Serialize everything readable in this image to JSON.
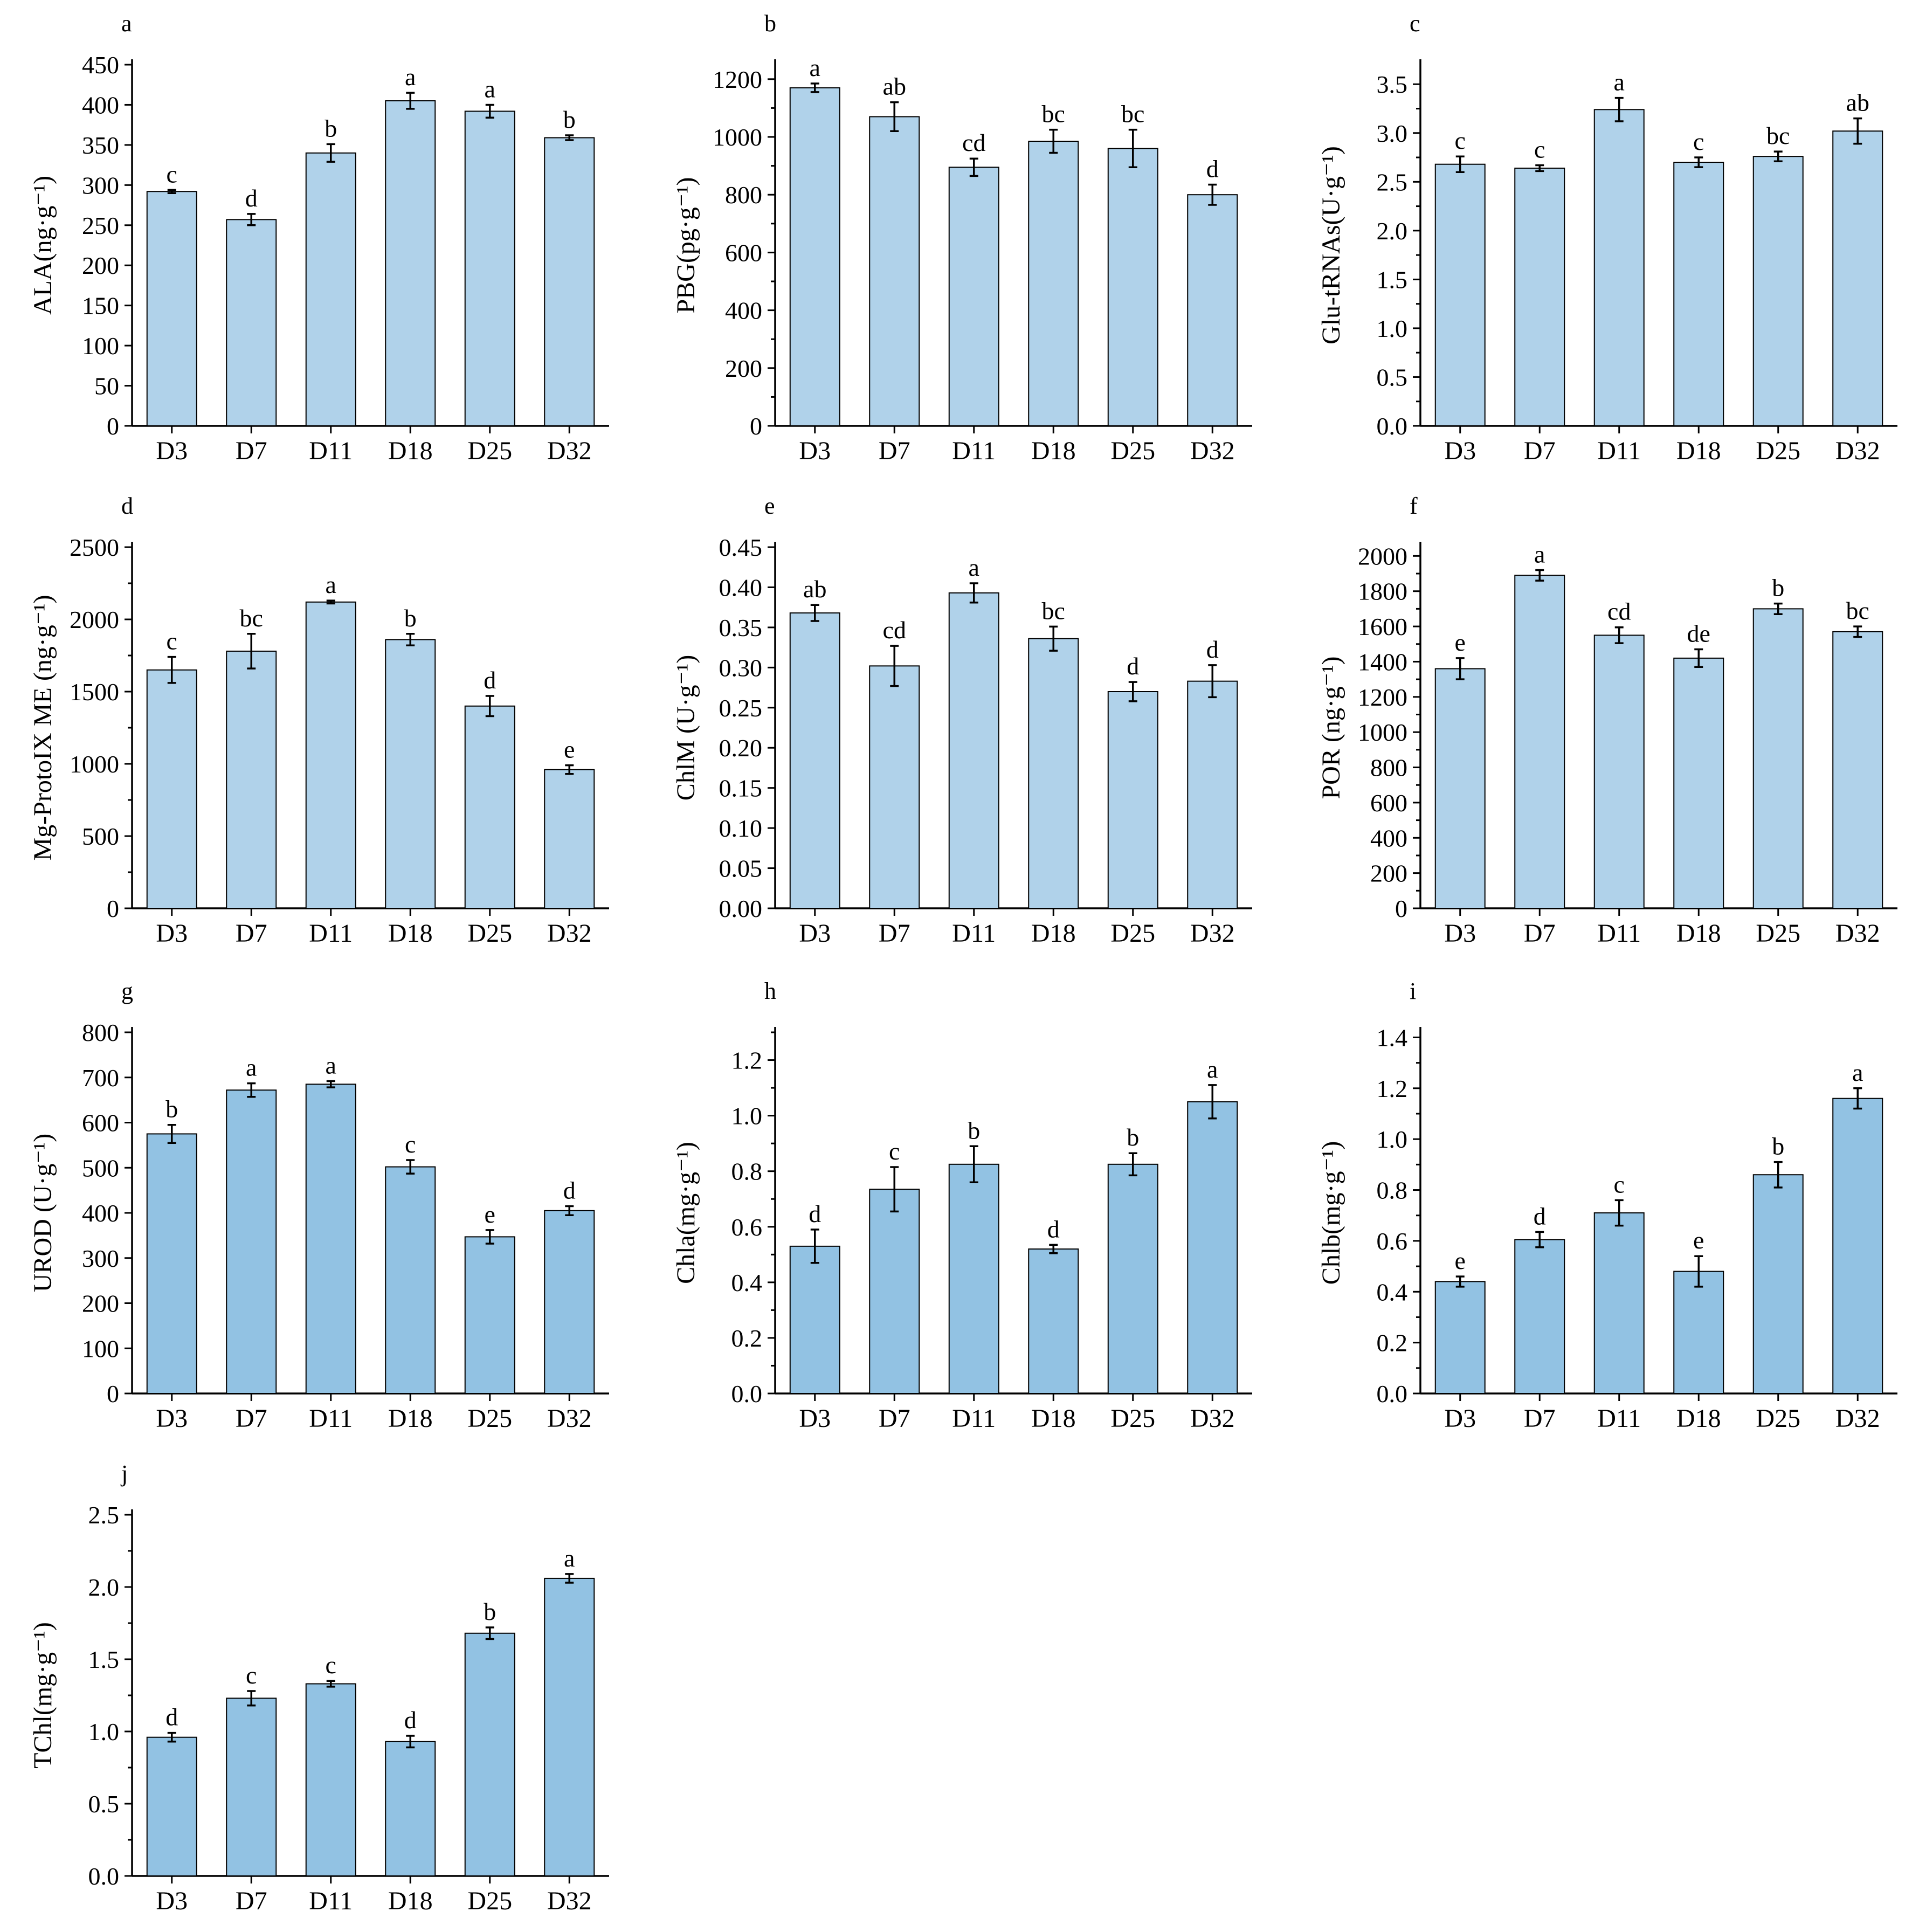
{
  "figure": {
    "colors": {
      "bar_light": "#b0d2ea",
      "bar_dark": "#92c2e3",
      "ink": "#000000"
    }
  },
  "chart_data": [
    {
      "panel": "a",
      "type": "bar",
      "ylabel": "ALA(ng·g⁻¹)",
      "ylim": [
        0,
        450
      ],
      "yticks": [
        0,
        50,
        100,
        150,
        200,
        250,
        300,
        350,
        400,
        450
      ],
      "tick_decimals": 0,
      "minor_ticks": false,
      "color": "#b0d2ea",
      "categories": [
        "D3",
        "D7",
        "D11",
        "D18",
        "D25",
        "D32"
      ],
      "values": [
        292,
        257,
        340,
        405,
        392,
        359
      ],
      "errors": [
        2,
        7,
        11,
        10,
        8,
        3
      ],
      "letters": [
        "c",
        "d",
        "b",
        "a",
        "a",
        "b"
      ]
    },
    {
      "panel": "b",
      "type": "bar",
      "ylabel": "PBG(pg·g⁻¹)",
      "ylim": [
        0,
        1250
      ],
      "yticks": [
        0,
        200,
        400,
        600,
        800,
        1000,
        1200
      ],
      "tick_decimals": 0,
      "minor_ticks": true,
      "color": "#b0d2ea",
      "categories": [
        "D3",
        "D7",
        "D11",
        "D18",
        "D25",
        "D32"
      ],
      "values": [
        1170,
        1070,
        895,
        985,
        960,
        800
      ],
      "errors": [
        15,
        50,
        30,
        40,
        65,
        35
      ],
      "letters": [
        "a",
        "ab",
        "cd",
        "bc",
        "bc",
        "d"
      ]
    },
    {
      "panel": "c",
      "type": "bar",
      "ylabel": "Glu-tRNAs(U·g⁻¹)",
      "ylim": [
        0,
        3.7
      ],
      "yticks": [
        0,
        0.5,
        1.0,
        1.5,
        2.0,
        2.5,
        3.0,
        3.5
      ],
      "tick_decimals": 1,
      "minor_ticks": true,
      "color": "#b0d2ea",
      "categories": [
        "D3",
        "D7",
        "D11",
        "D18",
        "D25",
        "D32"
      ],
      "values": [
        2.68,
        2.64,
        3.24,
        2.7,
        2.76,
        3.02
      ],
      "errors": [
        0.08,
        0.03,
        0.12,
        0.05,
        0.05,
        0.13
      ],
      "letters": [
        "c",
        "c",
        "a",
        "c",
        "bc",
        "ab"
      ]
    },
    {
      "panel": "d",
      "type": "bar",
      "ylabel": "Mg-ProtoIX ME (ng·g⁻¹)",
      "ylim": [
        0,
        2500
      ],
      "yticks": [
        0,
        500,
        1000,
        1500,
        2000,
        2500
      ],
      "tick_decimals": 0,
      "minor_ticks": true,
      "color": "#b0d2ea",
      "categories": [
        "D3",
        "D7",
        "D11",
        "D18",
        "D25",
        "D32"
      ],
      "values": [
        1650,
        1780,
        2120,
        1860,
        1400,
        960
      ],
      "errors": [
        90,
        120,
        10,
        40,
        70,
        30
      ],
      "letters": [
        "c",
        "bc",
        "a",
        "b",
        "d",
        "e"
      ]
    },
    {
      "panel": "e",
      "type": "bar",
      "ylabel": "ChlM (U·g⁻¹)",
      "ylim": [
        0,
        0.45
      ],
      "yticks": [
        0,
        0.05,
        0.1,
        0.15,
        0.2,
        0.25,
        0.3,
        0.35,
        0.4,
        0.45
      ],
      "tick_decimals": 2,
      "minor_ticks": false,
      "color": "#b0d2ea",
      "categories": [
        "D3",
        "D7",
        "D11",
        "D18",
        "D25",
        "D32"
      ],
      "values": [
        0.368,
        0.302,
        0.393,
        0.336,
        0.27,
        0.283
      ],
      "errors": [
        0.01,
        0.025,
        0.012,
        0.015,
        0.012,
        0.02
      ],
      "letters": [
        "ab",
        "cd",
        "a",
        "bc",
        "d",
        "d"
      ]
    },
    {
      "panel": "f",
      "type": "bar",
      "ylabel": "POR  (ng·g⁻¹)",
      "ylim": [
        0,
        2050
      ],
      "yticks": [
        0,
        200,
        400,
        600,
        800,
        1000,
        1200,
        1400,
        1600,
        1800,
        2000
      ],
      "tick_decimals": 0,
      "minor_ticks": true,
      "color": "#b0d2ea",
      "categories": [
        "D3",
        "D7",
        "D11",
        "D18",
        "D25",
        "D32"
      ],
      "values": [
        1360,
        1890,
        1550,
        1420,
        1700,
        1570
      ],
      "errors": [
        60,
        30,
        45,
        50,
        30,
        30
      ],
      "letters": [
        "e",
        "a",
        "cd",
        "de",
        "b",
        "bc"
      ]
    },
    {
      "panel": "g",
      "type": "bar",
      "ylabel": "UROD (U·g⁻¹)",
      "ylim": [
        0,
        800
      ],
      "yticks": [
        0,
        100,
        200,
        300,
        400,
        500,
        600,
        700,
        800
      ],
      "tick_decimals": 0,
      "minor_ticks": false,
      "color": "#92c2e3",
      "categories": [
        "D3",
        "D7",
        "D11",
        "D18",
        "D25",
        "D32"
      ],
      "values": [
        575,
        672,
        685,
        502,
        347,
        405
      ],
      "errors": [
        20,
        15,
        7,
        15,
        15,
        10
      ],
      "letters": [
        "b",
        "a",
        "a",
        "c",
        "e",
        "d"
      ]
    },
    {
      "panel": "h",
      "type": "bar",
      "ylabel": "Chla(mg·g⁻¹)",
      "ylim": [
        0,
        1.3
      ],
      "yticks": [
        0,
        0.2,
        0.4,
        0.6,
        0.8,
        1.0,
        1.2
      ],
      "tick_decimals": 1,
      "minor_ticks": true,
      "color": "#92c2e3",
      "categories": [
        "D3",
        "D7",
        "D11",
        "D18",
        "D25",
        "D32"
      ],
      "values": [
        0.53,
        0.735,
        0.825,
        0.52,
        0.825,
        1.05
      ],
      "errors": [
        0.06,
        0.08,
        0.065,
        0.015,
        0.04,
        0.06
      ],
      "letters": [
        "d",
        "c",
        "b",
        "d",
        "b",
        "a"
      ]
    },
    {
      "panel": "i",
      "type": "bar",
      "ylabel": "Chlb(mg·g⁻¹)",
      "ylim": [
        0,
        1.42
      ],
      "yticks": [
        0,
        0.2,
        0.4,
        0.6,
        0.8,
        1.0,
        1.2,
        1.4
      ],
      "tick_decimals": 1,
      "minor_ticks": true,
      "color": "#92c2e3",
      "categories": [
        "D3",
        "D7",
        "D11",
        "D18",
        "D25",
        "D32"
      ],
      "values": [
        0.44,
        0.605,
        0.71,
        0.48,
        0.86,
        1.16
      ],
      "errors": [
        0.02,
        0.03,
        0.05,
        0.06,
        0.05,
        0.04
      ],
      "letters": [
        "e",
        "d",
        "c",
        "e",
        "b",
        "a"
      ]
    },
    {
      "panel": "j",
      "type": "bar",
      "ylabel": "TChl(mg·g⁻¹)",
      "ylim": [
        0,
        2.5
      ],
      "yticks": [
        0,
        0.5,
        1.0,
        1.5,
        2.0,
        2.5
      ],
      "tick_decimals": 1,
      "minor_ticks": true,
      "color": "#92c2e3",
      "categories": [
        "D3",
        "D7",
        "D11",
        "D18",
        "D25",
        "D32"
      ],
      "values": [
        0.96,
        1.23,
        1.33,
        0.93,
        1.68,
        2.06
      ],
      "errors": [
        0.03,
        0.05,
        0.02,
        0.04,
        0.04,
        0.03
      ],
      "letters": [
        "d",
        "c",
        "c",
        "d",
        "b",
        "a"
      ]
    }
  ]
}
